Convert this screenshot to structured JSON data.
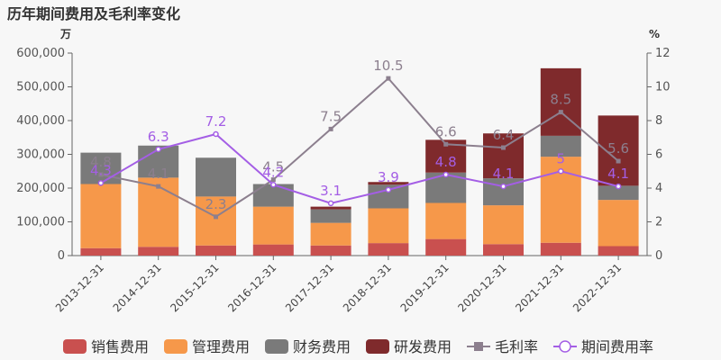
{
  "title": "历年期间费用及毛利率变化",
  "chart_data": {
    "type": "bar",
    "stacked": true,
    "categories": [
      "2013-12-31",
      "2014-12-31",
      "2015-12-31",
      "2016-12-31",
      "2017-12-31",
      "2018-12-31",
      "2019-12-31",
      "2020-12-31",
      "2021-12-31",
      "2022-12-31"
    ],
    "y_left": {
      "unit": "万",
      "min": 0,
      "max": 600000,
      "ticks": [
        "0",
        "100,000",
        "200,000",
        "300,000",
        "400,000",
        "500,000",
        "600,000"
      ]
    },
    "y_right": {
      "unit": "%",
      "min": 0,
      "max": 12,
      "ticks": [
        "0",
        "2",
        "4",
        "6",
        "8",
        "10",
        "12"
      ]
    },
    "series": [
      {
        "name": "销售费用",
        "kind": "bar",
        "color": "#c9504f",
        "values": [
          22000,
          26000,
          30000,
          33000,
          30000,
          37000,
          49000,
          34000,
          38000,
          28000
        ]
      },
      {
        "name": "管理费用",
        "kind": "bar",
        "color": "#f6984a",
        "values": [
          190000,
          205000,
          145000,
          112000,
          67000,
          103000,
          107000,
          115000,
          255000,
          137000
        ]
      },
      {
        "name": "财务费用",
        "kind": "bar",
        "color": "#7a7a7a",
        "values": [
          93000,
          95000,
          115000,
          67000,
          40000,
          70000,
          90000,
          80000,
          62000,
          42000
        ]
      },
      {
        "name": "研发费用",
        "kind": "bar",
        "color": "#7f2a2c",
        "values": [
          0,
          0,
          0,
          0,
          8000,
          8000,
          97000,
          133000,
          200000,
          208000
        ]
      },
      {
        "name": "毛利率",
        "kind": "line",
        "color": "#8c7f8e",
        "marker": "square",
        "values": [
          4.8,
          4.1,
          2.3,
          4.5,
          7.5,
          10.5,
          6.6,
          6.4,
          8.5,
          5.6
        ],
        "labels": [
          "4.8",
          "4.1",
          "2.3",
          "4.5",
          "7.5",
          "10.5",
          "6.6",
          "6.4",
          "8.5",
          "5.6"
        ]
      },
      {
        "name": "期间费用率",
        "kind": "line",
        "color": "#a45ee5",
        "marker": "circle",
        "values": [
          4.3,
          6.3,
          7.2,
          4.2,
          3.1,
          3.9,
          4.8,
          4.1,
          5.0,
          4.1
        ],
        "labels": [
          "4.3",
          "6.3",
          "7.2",
          "4.2",
          "3.1",
          "3.9",
          "4.8",
          "4.1",
          "5",
          "4.1"
        ]
      }
    ],
    "legend_position": "bottom"
  }
}
